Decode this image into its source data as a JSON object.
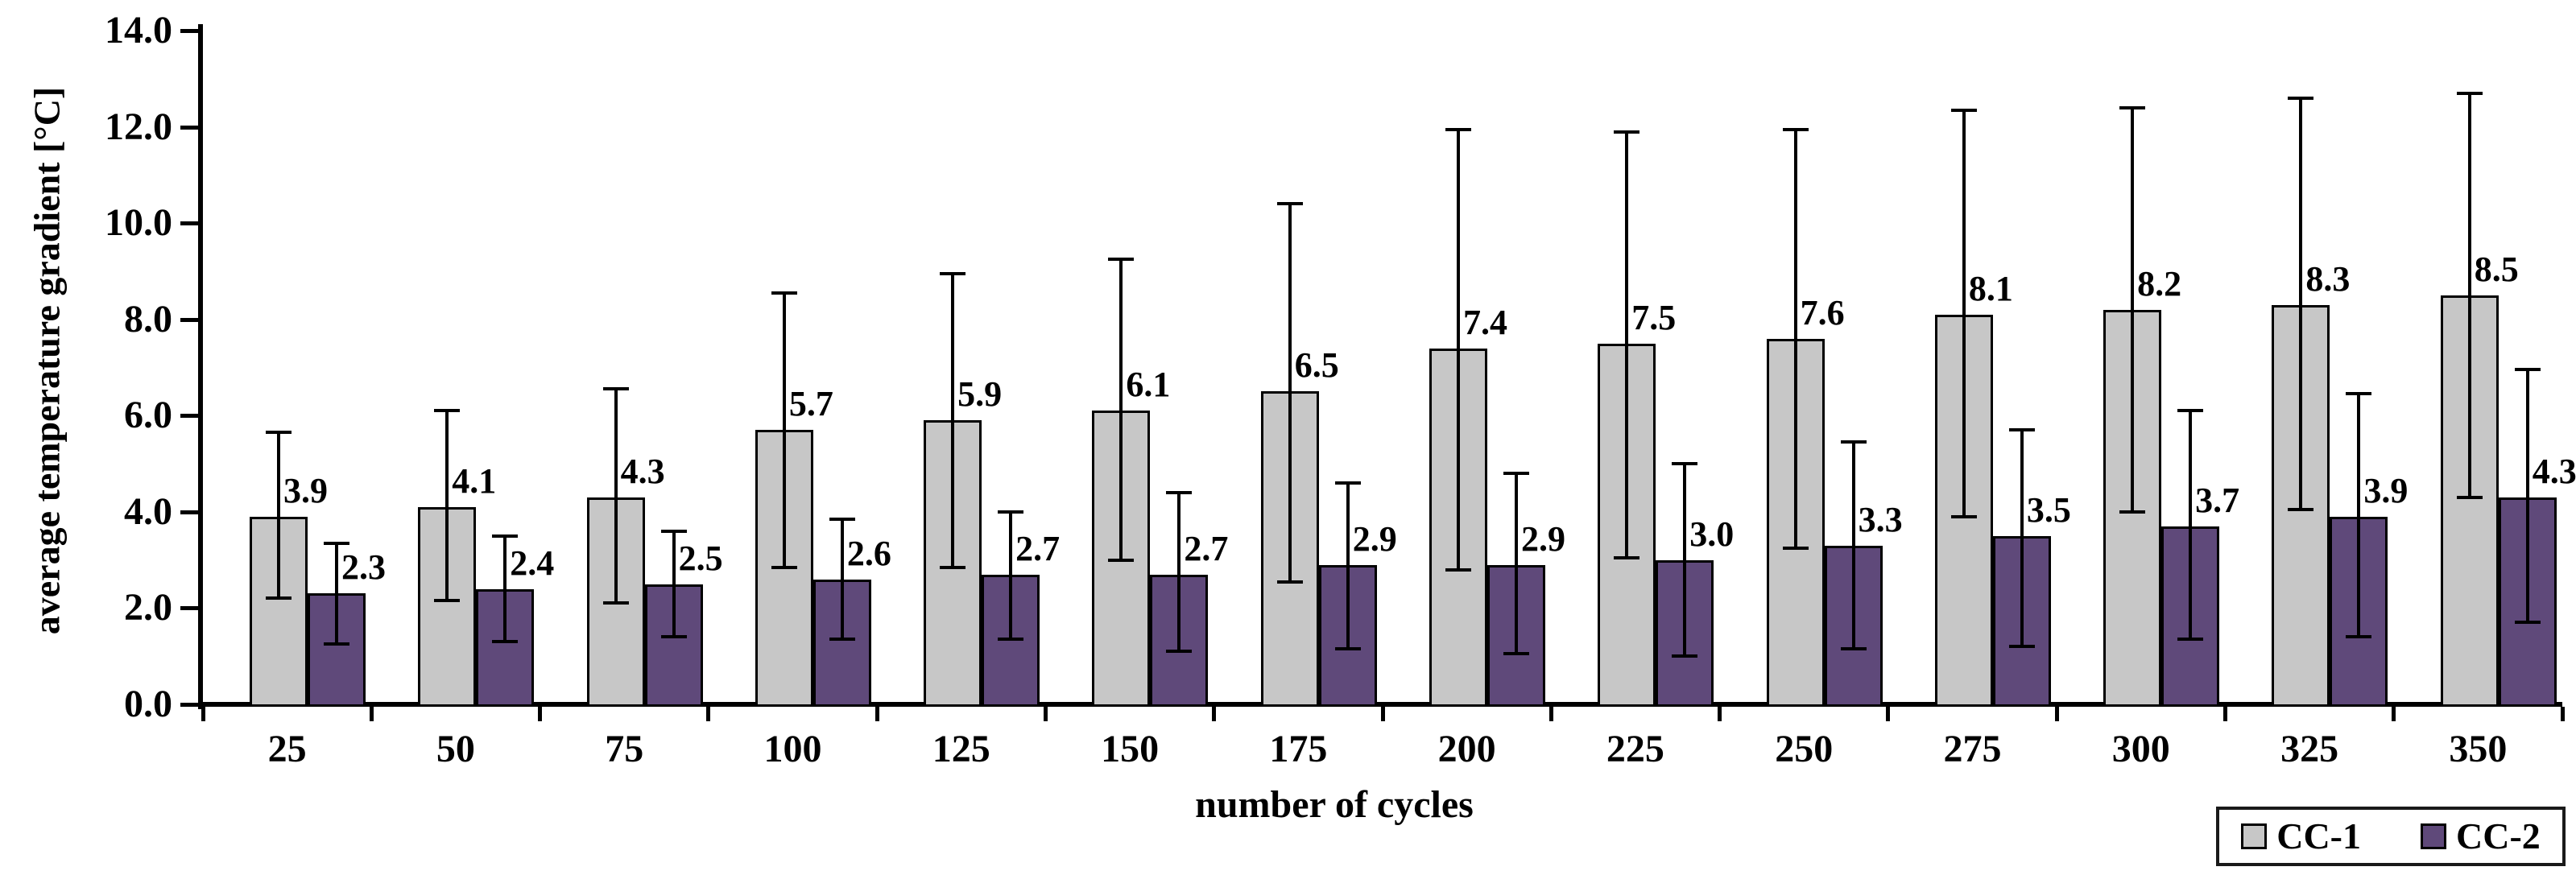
{
  "chart_data": {
    "type": "bar",
    "title": "",
    "xlabel": "number of cycles",
    "ylabel": "average temperature gradient [°C]",
    "ylim": [
      0.0,
      14.0
    ],
    "ytick_step": 2.0,
    "ytick_decimals": 1,
    "grid": false,
    "legend_position": "bottom-right",
    "background_color": "#ffffff",
    "axis_color": "#000000",
    "bar_outline_color": "#000000",
    "error_bar_color": "#000000",
    "value_label_decimals": 1,
    "categories": [
      "25",
      "50",
      "75",
      "100",
      "125",
      "150",
      "175",
      "200",
      "225",
      "250",
      "275",
      "300",
      "325",
      "350"
    ],
    "series": [
      {
        "name": "CC-1",
        "color": "#C7C7C7",
        "values": [
          3.9,
          4.1,
          4.3,
          5.7,
          5.9,
          6.1,
          6.5,
          7.4,
          7.5,
          7.6,
          8.1,
          8.2,
          8.3,
          8.5
        ],
        "error_top": [
          5.65,
          6.1,
          6.55,
          8.55,
          8.95,
          9.25,
          10.4,
          11.95,
          11.9,
          11.95,
          12.35,
          12.4,
          12.6,
          12.7
        ],
        "error_bottom": [
          2.2,
          2.15,
          2.1,
          2.85,
          2.85,
          3.0,
          2.55,
          2.8,
          3.05,
          3.25,
          3.9,
          4.0,
          4.05,
          4.3
        ]
      },
      {
        "name": "CC-2",
        "color": "#5F497A",
        "values": [
          2.3,
          2.4,
          2.5,
          2.6,
          2.7,
          2.7,
          2.9,
          2.9,
          3.0,
          3.3,
          3.5,
          3.7,
          3.9,
          4.3
        ],
        "error_top": [
          3.35,
          3.5,
          3.6,
          3.85,
          4.0,
          4.4,
          4.6,
          4.8,
          5.0,
          5.45,
          5.7,
          6.1,
          6.45,
          6.95
        ],
        "error_bottom": [
          1.25,
          1.3,
          1.4,
          1.35,
          1.35,
          1.1,
          1.15,
          1.05,
          1.0,
          1.15,
          1.2,
          1.35,
          1.4,
          1.7
        ]
      }
    ]
  }
}
